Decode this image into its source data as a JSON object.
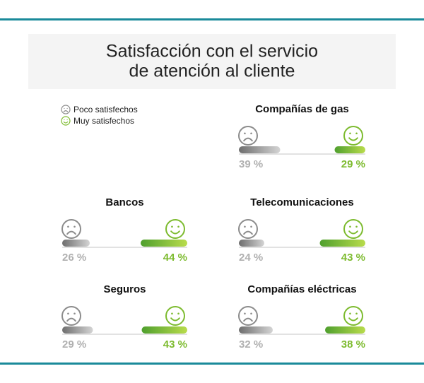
{
  "title": [
    "Satisfacción con el servicio",
    "de atención al cliente"
  ],
  "chart_data": [
    {
      "type": "bar",
      "title": "Compañías de gas",
      "series": [
        {
          "name": "Poco satisfechos",
          "color": "#8c8c8c",
          "values": [
            39
          ],
          "value_labels": [
            "39 %"
          ]
        },
        {
          "name": "Muy satisfechos",
          "color": "#7dbb2f",
          "values": [
            29
          ],
          "value_labels": [
            "29 %"
          ]
        }
      ]
    },
    {
      "type": "bar",
      "title": "Bancos",
      "series": [
        {
          "name": "Poco satisfechos",
          "color": "#8c8c8c",
          "values": [
            26
          ],
          "value_labels": [
            "26 %"
          ]
        },
        {
          "name": "Muy satisfechos",
          "color": "#7dbb2f",
          "values": [
            44
          ],
          "value_labels": [
            "44 %"
          ]
        }
      ]
    },
    {
      "type": "bar",
      "title": "Telecomunicaciones",
      "series": [
        {
          "name": "Poco satisfechos",
          "color": "#8c8c8c",
          "values": [
            24
          ],
          "value_labels": [
            "24 %"
          ]
        },
        {
          "name": "Muy satisfechos",
          "color": "#7dbb2f",
          "values": [
            43
          ],
          "value_labels": [
            "43 %"
          ]
        }
      ]
    },
    {
      "type": "bar",
      "title": "Seguros",
      "series": [
        {
          "name": "Poco satisfechos",
          "color": "#8c8c8c",
          "values": [
            29
          ],
          "value_labels": [
            "29 %"
          ]
        },
        {
          "name": "Muy satisfechos",
          "color": "#7dbb2f",
          "values": [
            43
          ],
          "value_labels": [
            "43 %"
          ]
        }
      ]
    },
    {
      "type": "bar",
      "title": "Compañías eléctricas",
      "series": [
        {
          "name": "Poco satisfechos",
          "color": "#8c8c8c",
          "values": [
            32
          ],
          "value_labels": [
            "32 %"
          ]
        },
        {
          "name": "Muy satisfechos",
          "color": "#7dbb2f",
          "values": [
            38
          ],
          "value_labels": [
            "38 %"
          ]
        }
      ]
    }
  ]
}
